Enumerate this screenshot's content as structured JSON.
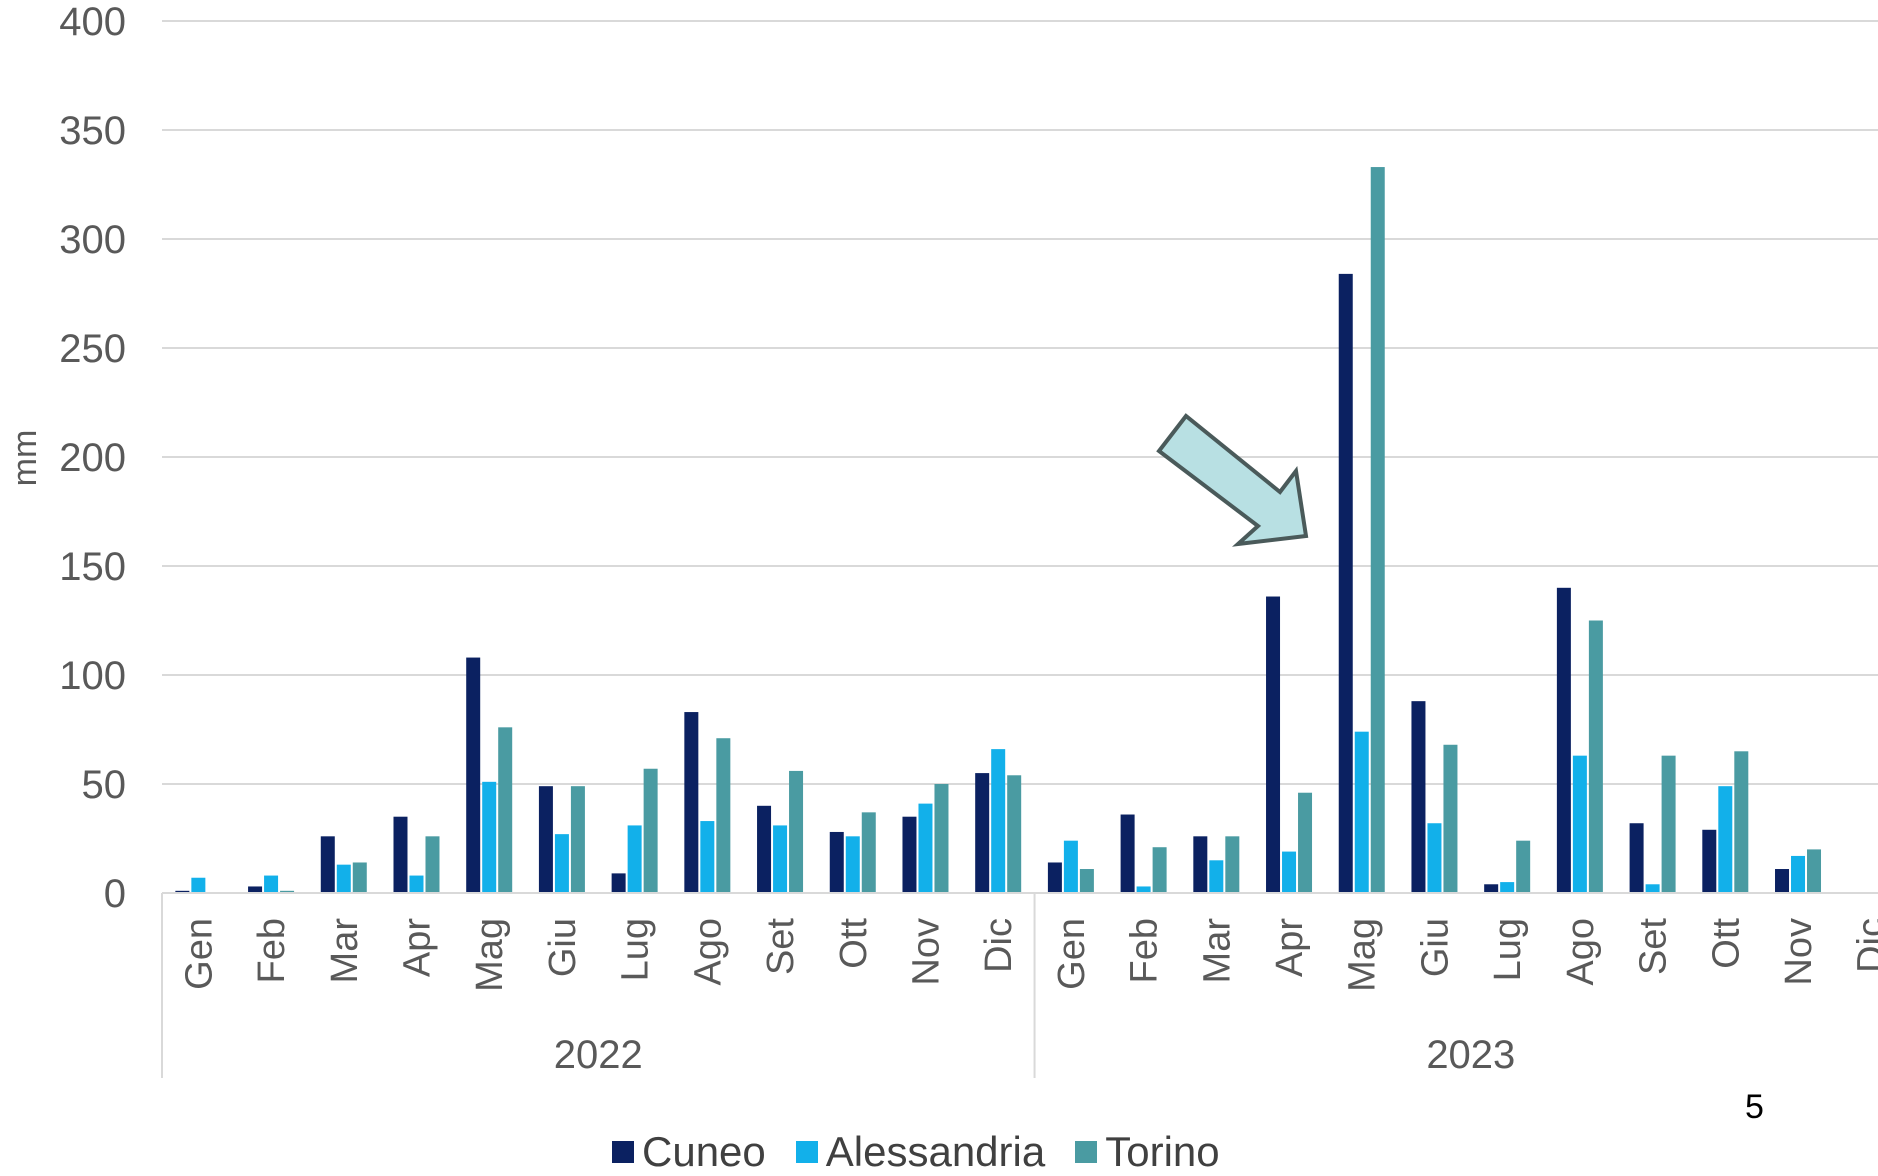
{
  "page_number": "5",
  "chart_data": {
    "type": "bar",
    "title": "",
    "xlabel": "",
    "ylabel": "mm",
    "ylim": [
      0,
      400
    ],
    "yticks": [
      0,
      50,
      100,
      150,
      200,
      250,
      300,
      350,
      400
    ],
    "grid": true,
    "legend_position": "bottom",
    "groups": [
      {
        "label": "2022",
        "months": [
          "Gen",
          "Feb",
          "Mar",
          "Apr",
          "Mag",
          "Giu",
          "Lug",
          "Ago",
          "Set",
          "Ott",
          "Nov",
          "Dic"
        ]
      },
      {
        "label": "2023",
        "months": [
          "Gen",
          "Feb",
          "Mar",
          "Apr",
          "Mag",
          "Giu",
          "Lug",
          "Ago",
          "Set",
          "Ott",
          "Nov",
          "Dic"
        ]
      }
    ],
    "series": [
      {
        "name": "Cuneo",
        "color": "#0b2161",
        "values": [
          1,
          3,
          26,
          35,
          108,
          49,
          9,
          83,
          40,
          28,
          35,
          55,
          14,
          36,
          26,
          136,
          284,
          88,
          4,
          140,
          32,
          29,
          11,
          null
        ]
      },
      {
        "name": "Alessandria",
        "color": "#12b0ea",
        "values": [
          7,
          8,
          13,
          8,
          51,
          27,
          31,
          33,
          31,
          26,
          41,
          66,
          24,
          3,
          15,
          19,
          74,
          32,
          5,
          63,
          4,
          49,
          17,
          null
        ]
      },
      {
        "name": "Torino",
        "color": "#4a9ba2",
        "values": [
          0,
          1,
          14,
          26,
          76,
          49,
          57,
          71,
          56,
          37,
          50,
          54,
          11,
          21,
          26,
          46,
          333,
          68,
          24,
          125,
          63,
          65,
          20,
          null
        ]
      }
    ],
    "annotation": {
      "type": "arrow",
      "target": "2023 Mag",
      "fill": "#b8e0e3",
      "stroke": "#4a5a5a"
    }
  }
}
